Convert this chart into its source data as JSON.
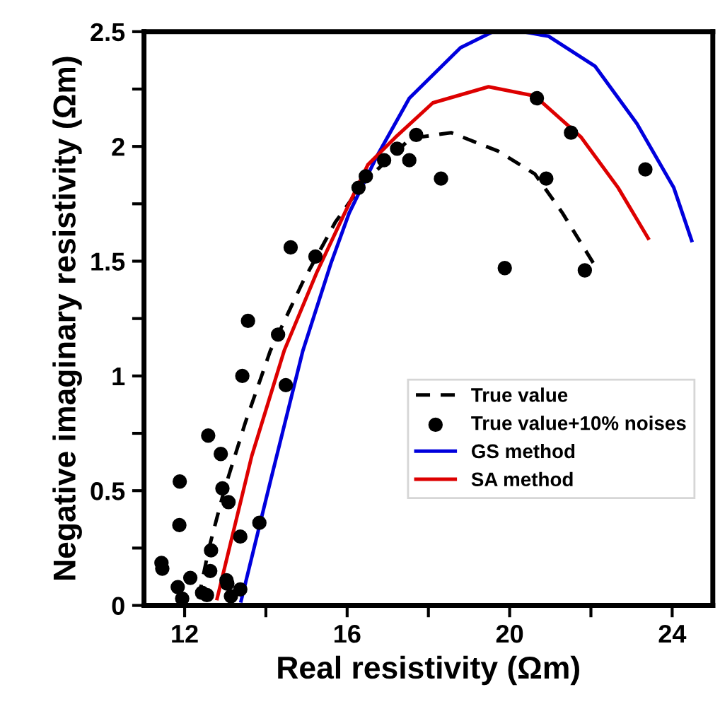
{
  "chart_data": {
    "type": "line",
    "xlabel": "Real resistivity (Ωm)",
    "ylabel": "Negative imaginary resistivity (Ωm)",
    "xlim": [
      11,
      25
    ],
    "xticks": [
      12,
      {
        "value": 14,
        "label": null
      },
      16,
      {
        "value": 18,
        "label": null
      },
      20,
      {
        "value": 22,
        "label": null
      },
      24
    ],
    "ylim": [
      0,
      2.5
    ],
    "yticks": [
      0,
      {
        "value": 0.25,
        "label": null
      },
      0.5,
      {
        "value": 0.75,
        "label": null
      },
      1,
      {
        "value": 1.25,
        "label": null
      },
      1.5,
      {
        "value": 1.75,
        "label": null
      },
      2,
      {
        "value": 2.25,
        "label": null
      },
      2.5
    ],
    "grid": false,
    "legend": "bottom right",
    "series": [
      {
        "name": "True value",
        "line_style": "dashed",
        "color": "#000000",
        "x": [
          12.34,
          12.6,
          12.97,
          13.5,
          14.11,
          14.91,
          15.71,
          16.39,
          17.53,
          17.76,
          18.56,
          19.71,
          20.62,
          21.3,
          22.1
        ],
        "values": [
          0.03,
          0.25,
          0.5,
          0.8,
          1.11,
          1.41,
          1.67,
          1.84,
          2.03,
          2.04,
          2.06,
          1.98,
          1.88,
          1.71,
          1.48
        ]
      },
      {
        "name": "True value+10% noises",
        "type": "scatter",
        "marker": "circle",
        "color": "#000000",
        "x": [
          11.43,
          11.45,
          11.83,
          11.94,
          11.88,
          11.87,
          12.14,
          12.43,
          12.55,
          12.58,
          12.65,
          12.63,
          12.89,
          12.93,
          13.08,
          13.03,
          13.05,
          13.14,
          13.37,
          13.37,
          13.42,
          13.84,
          14.49,
          13.56,
          14.3,
          14.61,
          15.22,
          16.28,
          16.46,
          16.91,
          17.23,
          17.53,
          17.7,
          18.31,
          19.88,
          20.67,
          20.9,
          21.51,
          21.85,
          23.34
        ],
        "values": [
          0.185,
          0.16,
          0.08,
          0.03,
          0.54,
          0.35,
          0.12,
          0.055,
          0.045,
          0.74,
          0.24,
          0.15,
          0.66,
          0.51,
          0.45,
          0.11,
          0.095,
          0.04,
          0.3,
          0.07,
          1.0,
          0.36,
          0.96,
          1.24,
          1.18,
          1.56,
          1.52,
          1.82,
          1.87,
          1.94,
          1.99,
          1.94,
          2.05,
          1.86,
          1.47,
          2.21,
          1.86,
          2.06,
          1.46,
          1.9
        ]
      },
      {
        "name": "GS method",
        "line_style": "solid",
        "color": "#0000dd",
        "x": [
          13.39,
          14.11,
          14.91,
          15.6,
          16.05,
          16.74,
          17.53,
          18.79,
          19.59,
          20.33,
          20.96,
          22.1,
          23.13,
          24.04,
          24.48
        ],
        "values": [
          0.02,
          0.54,
          1.11,
          1.49,
          1.71,
          1.96,
          2.21,
          2.43,
          2.5,
          2.5,
          2.48,
          2.35,
          2.1,
          1.82,
          1.59
        ]
      },
      {
        "name": "SA method",
        "line_style": "solid",
        "color": "#dd0000",
        "x": [
          12.8,
          13.65,
          14.45,
          15.25,
          15.94,
          16.51,
          17.19,
          18.11,
          19.48,
          20.62,
          21.76,
          22.67,
          23.41
        ],
        "values": [
          0.03,
          0.65,
          1.11,
          1.45,
          1.71,
          1.92,
          2.04,
          2.19,
          2.26,
          2.22,
          2.04,
          1.82,
          1.6
        ]
      }
    ]
  }
}
